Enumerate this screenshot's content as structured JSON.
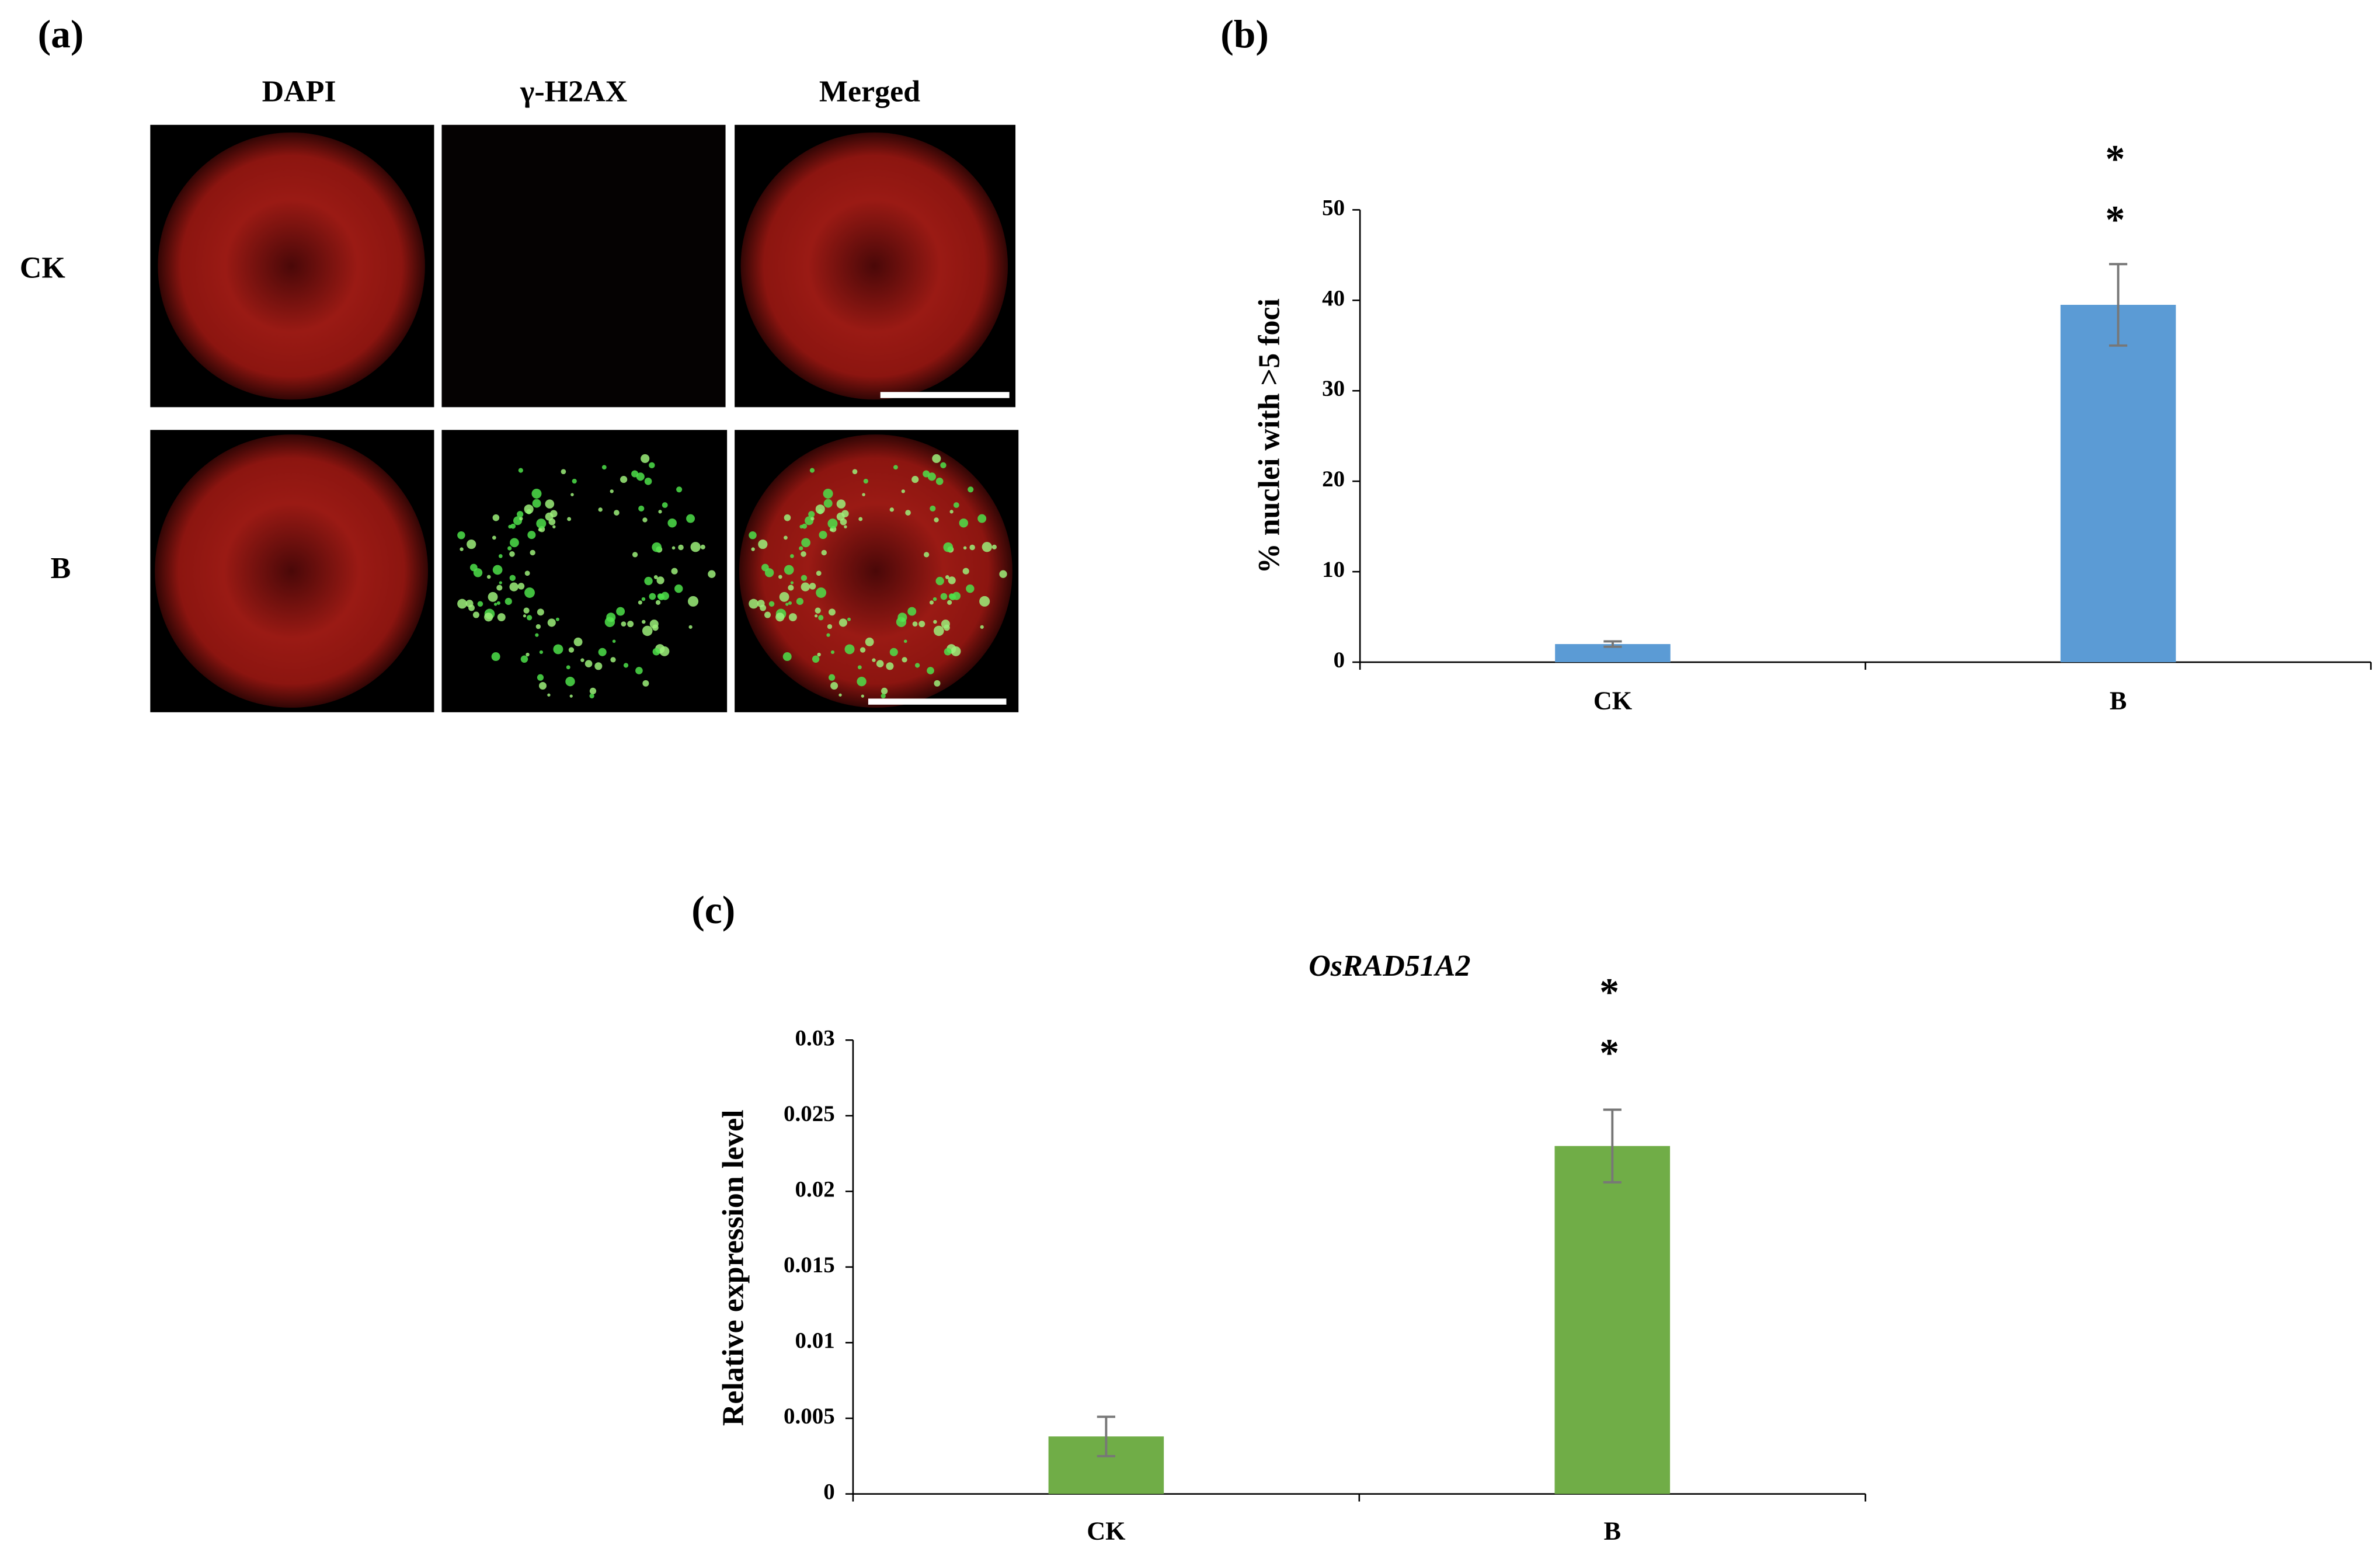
{
  "panel_a": {
    "label": "(a)",
    "columns": [
      "DAPI",
      "γ-H2AX",
      "Merged"
    ],
    "rows": [
      "CK",
      "B"
    ]
  },
  "chart_data": [
    {
      "type": "bar",
      "panel_label": "(b)",
      "ylabel": "% nuclei with >5 foci",
      "categories": [
        "CK",
        "B"
      ],
      "values": [
        2,
        39.5
      ],
      "errors": [
        0.3,
        4.5
      ],
      "color": "#5b9bd5",
      "ylim": [
        0,
        50
      ],
      "yticks": [
        0,
        10,
        20,
        30,
        40,
        50
      ],
      "annotations": [
        "*",
        "*"
      ]
    },
    {
      "type": "bar",
      "panel_label": "(c)",
      "title": "OsRAD51A2",
      "ylabel": "Relative expression level",
      "categories": [
        "CK",
        "B"
      ],
      "values": [
        0.0038,
        0.023
      ],
      "errors": [
        0.0013,
        0.0024
      ],
      "color": "#70ad47",
      "ylim": [
        0,
        0.03
      ],
      "yticks": [
        0,
        0.005,
        0.01,
        0.015,
        0.02,
        0.025,
        0.03
      ],
      "annotations": [
        "*",
        "*"
      ]
    }
  ]
}
